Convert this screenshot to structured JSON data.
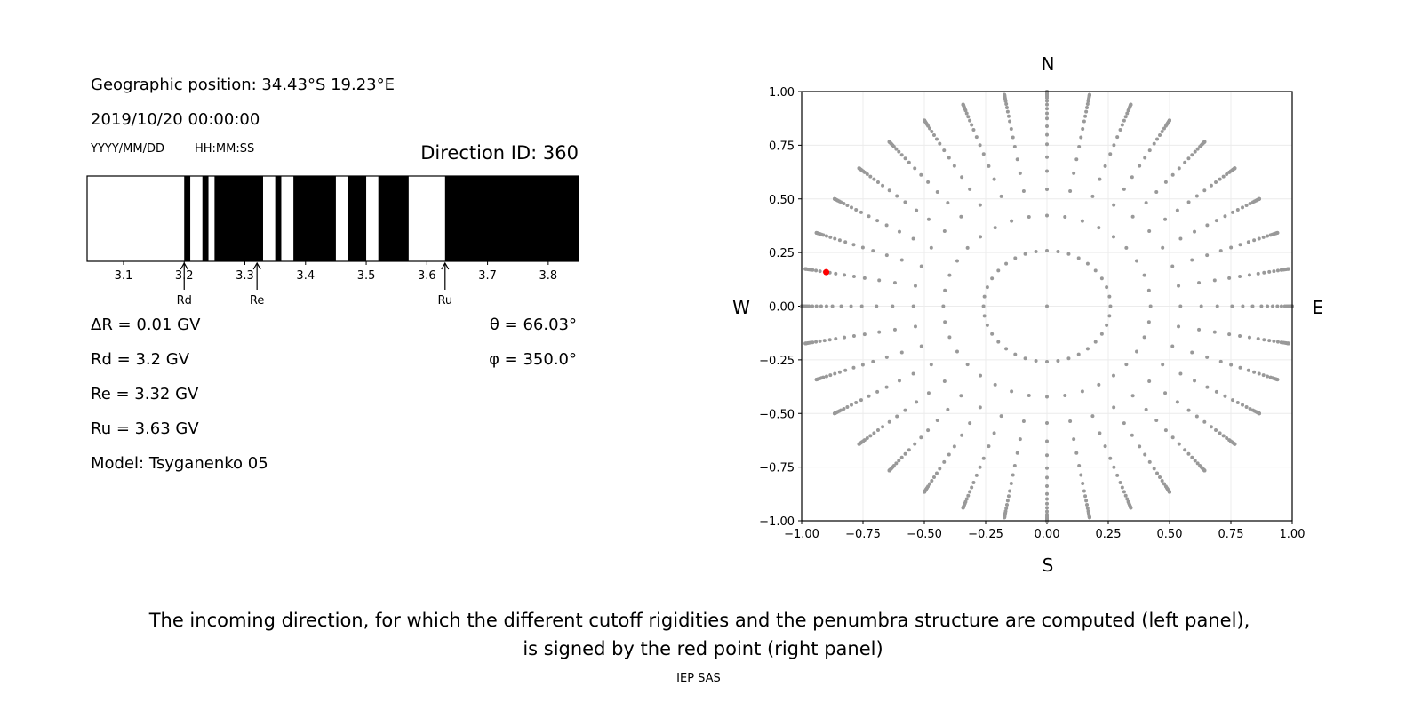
{
  "left_panel": {
    "geo_position": "Geographic position: 34.43°S 19.23°E",
    "datetime": "2019/10/20 00:00:00",
    "date_format_label": "YYYY/MM/DD",
    "time_format_label": "HH:MM:SS",
    "direction_id": "Direction ID: 360",
    "delta_r": "ΔR = 0.01 GV",
    "rd": "Rd = 3.2 GV",
    "re": "Re = 3.32 GV",
    "ru": "Ru = 3.63 GV",
    "model": "Model: Tsyganenko 05",
    "theta": "θ = 66.03°",
    "phi": "φ = 350.0°"
  },
  "caption": {
    "line1": "The incoming direction, for which the different cutoff rigidities and the penumbra structure are computed (left panel),",
    "line2": "is signed by the red point (right panel)",
    "credit": "IEP SAS"
  },
  "chart_data": [
    {
      "type": "penumbra-bar",
      "xlim": [
        3.04,
        3.85
      ],
      "xticks": [
        3.1,
        3.2,
        3.3,
        3.4,
        3.5,
        3.6,
        3.7,
        3.8
      ],
      "xtick_labels": [
        "3.1",
        "3.2",
        "3.3",
        "3.4",
        "3.5",
        "3.6",
        "3.7",
        "3.8"
      ],
      "allowed_color": "#ffffff",
      "forbidden_color": "#000000",
      "allowed_intervals_gv": [
        [
          3.04,
          3.2
        ],
        [
          3.21,
          3.23
        ],
        [
          3.24,
          3.25
        ],
        [
          3.33,
          3.35
        ],
        [
          3.36,
          3.38
        ],
        [
          3.45,
          3.47
        ],
        [
          3.5,
          3.52
        ],
        [
          3.57,
          3.63
        ]
      ],
      "markers": [
        {
          "label": "Rd",
          "value": 3.2
        },
        {
          "label": "Re",
          "value": 3.32
        },
        {
          "label": "Ru",
          "value": 3.63
        }
      ]
    },
    {
      "type": "scatter",
      "xlim": [
        -1,
        1
      ],
      "ylim": [
        -1,
        1
      ],
      "xticks": [
        "−1.00",
        "−0.75",
        "−0.50",
        "−0.25",
        "0.00",
        "0.25",
        "0.50",
        "0.75",
        "1.00"
      ],
      "yticks": [
        "−1.00",
        "−0.75",
        "−0.50",
        "−0.25",
        "0.00",
        "0.25",
        "0.50",
        "0.75",
        "1.00"
      ],
      "grid": true,
      "compass": {
        "north": "N",
        "south": "S",
        "west": "W",
        "east": "E"
      },
      "grid_points": {
        "color": "#999999",
        "azimuth_step_deg": 10,
        "zenith_deg": [
          15,
          25,
          33,
          39,
          44,
          49,
          53,
          57,
          61,
          64,
          67,
          70,
          73,
          76,
          78,
          80,
          82,
          84,
          86,
          87,
          88,
          89,
          90
        ],
        "center": true
      },
      "selected_direction": {
        "theta_deg": 66.03,
        "phi_deg": 350.0,
        "color": "#ff0000"
      }
    }
  ]
}
